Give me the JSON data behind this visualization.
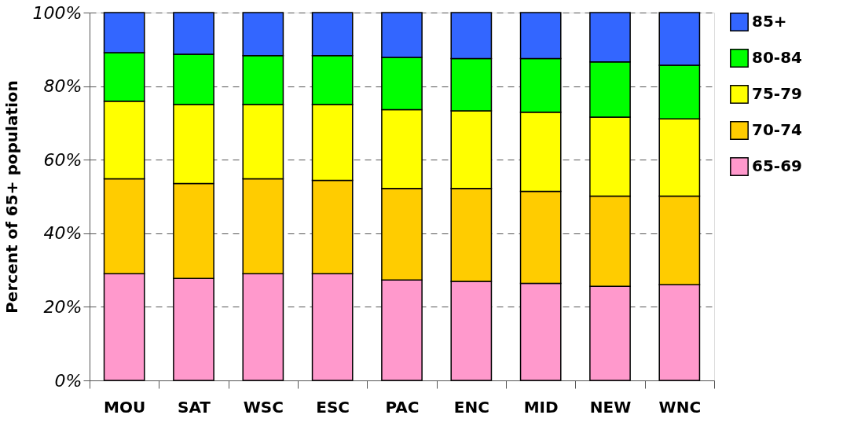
{
  "chart_data": {
    "type": "bar",
    "stacked": true,
    "ylabel": "Percent of 65+ population",
    "categories": [
      "MOU",
      "SAT",
      "WSC",
      "ESC",
      "PAC",
      "ENC",
      "MID",
      "NEW",
      "WNC"
    ],
    "series": [
      {
        "name": "65-69",
        "color": "#ff99cc",
        "values": [
          29.0,
          27.7,
          29.0,
          29.0,
          27.3,
          26.9,
          26.4,
          25.6,
          26.0
        ]
      },
      {
        "name": "70-74",
        "color": "#ffcc00",
        "values": [
          25.8,
          25.8,
          25.8,
          25.4,
          24.9,
          25.3,
          25.0,
          24.5,
          24.1
        ]
      },
      {
        "name": "75-79",
        "color": "#ffff00",
        "values": [
          21.1,
          21.5,
          20.2,
          20.6,
          21.4,
          21.1,
          21.5,
          21.5,
          21.0
        ]
      },
      {
        "name": "80-84",
        "color": "#00ff00",
        "values": [
          13.2,
          13.7,
          13.3,
          13.3,
          14.2,
          14.2,
          14.6,
          15.0,
          14.6
        ]
      },
      {
        "name": "85+",
        "color": "#3366ff",
        "values": [
          10.9,
          11.3,
          11.7,
          11.7,
          12.2,
          12.5,
          12.5,
          13.4,
          14.3
        ]
      }
    ],
    "ylim": [
      0,
      100
    ],
    "yticks": [
      {
        "value": 0,
        "label": "0%"
      },
      {
        "value": 20,
        "label": "20%"
      },
      {
        "value": 40,
        "label": "40%"
      },
      {
        "value": 60,
        "label": "60%"
      },
      {
        "value": 80,
        "label": "80%"
      },
      {
        "value": 100,
        "label": "100%"
      }
    ],
    "grid": "y",
    "legend": "right"
  }
}
